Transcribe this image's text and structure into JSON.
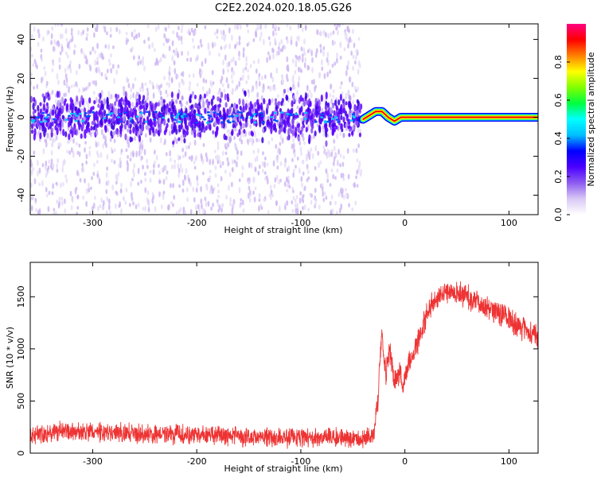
{
  "title": "C2E2.2024.020.18.05.G26",
  "chart_data": [
    {
      "type": "heatmap",
      "xlabel": "Height of straight line (km)",
      "ylabel": "Frequency (Hz)",
      "xlim": [
        -360,
        128
      ],
      "ylim": [
        -50,
        48
      ],
      "x_ticks": [
        -300,
        -200,
        -100,
        0,
        100
      ],
      "x_tick_labels": [
        "-300",
        "-200",
        "-100",
        "0",
        "100"
      ],
      "y_ticks": [
        -40,
        -20,
        0,
        20,
        40
      ],
      "y_tick_labels": [
        "-40",
        "-20",
        "0",
        "20",
        "40"
      ],
      "noise_region_x": [
        -360,
        -42
      ],
      "noise_band_y": [
        -10,
        10
      ],
      "signal_track": [
        {
          "x": -40,
          "y": -1
        },
        {
          "x": -34,
          "y": 1
        },
        {
          "x": -28,
          "y": 3
        },
        {
          "x": -22,
          "y": 3
        },
        {
          "x": -16,
          "y": 0
        },
        {
          "x": -10,
          "y": -2
        },
        {
          "x": -4,
          "y": 0
        },
        {
          "x": 0,
          "y": 0
        },
        {
          "x": 128,
          "y": 0
        }
      ],
      "colorbar": {
        "label": "Normalized spectral amplitude",
        "range": [
          0,
          1
        ],
        "ticks": [
          0.0,
          0.2,
          0.4,
          0.6,
          0.8
        ],
        "tick_labels": [
          "0.0",
          "0.2",
          "0.4",
          "0.6",
          "0.8"
        ],
        "colors": [
          "#ffffff",
          "#d9c8f5",
          "#8d5cf0",
          "#4b00ff",
          "#0000ff",
          "#00bfff",
          "#00ffff",
          "#00ff40",
          "#7fff00",
          "#ffff00",
          "#ff8000",
          "#ff0000",
          "#ff0080"
        ]
      }
    },
    {
      "type": "line",
      "xlabel": "Height of straight line (km)",
      "ylabel": "SNR (10 * v/v)",
      "xlim": [
        -360,
        128
      ],
      "ylim": [
        0,
        1830
      ],
      "x_ticks": [
        -300,
        -200,
        -100,
        0,
        100
      ],
      "x_tick_labels": [
        "-300",
        "-200",
        "-100",
        "0",
        "100"
      ],
      "y_ticks": [
        0,
        500,
        1000,
        1500
      ],
      "y_tick_labels": [
        "0",
        "500",
        "1000",
        "1500"
      ],
      "color": "#ee3333",
      "series": [
        {
          "x": [
            -360,
            -340,
            -320,
            -300,
            -280,
            -260,
            -240,
            -220,
            -200,
            -180,
            -160,
            -140,
            -120,
            -100,
            -80,
            -60,
            -40,
            -30,
            -26,
            -24,
            -22,
            -20,
            -18,
            -15,
            -12,
            -10,
            -8,
            -5,
            -2,
            0,
            5,
            10,
            15,
            20,
            25,
            30,
            35,
            40,
            50,
            60,
            70,
            80,
            90,
            100,
            110,
            120,
            128
          ],
          "y": [
            180,
            200,
            205,
            200,
            195,
            190,
            185,
            178,
            170,
            165,
            160,
            155,
            150,
            148,
            146,
            145,
            145,
            160,
            500,
            900,
            1200,
            900,
            750,
            1000,
            850,
            650,
            700,
            800,
            650,
            750,
            900,
            1000,
            1150,
            1300,
            1400,
            1470,
            1520,
            1560,
            1540,
            1500,
            1450,
            1400,
            1350,
            1300,
            1220,
            1150,
            1100
          ]
        }
      ]
    }
  ]
}
